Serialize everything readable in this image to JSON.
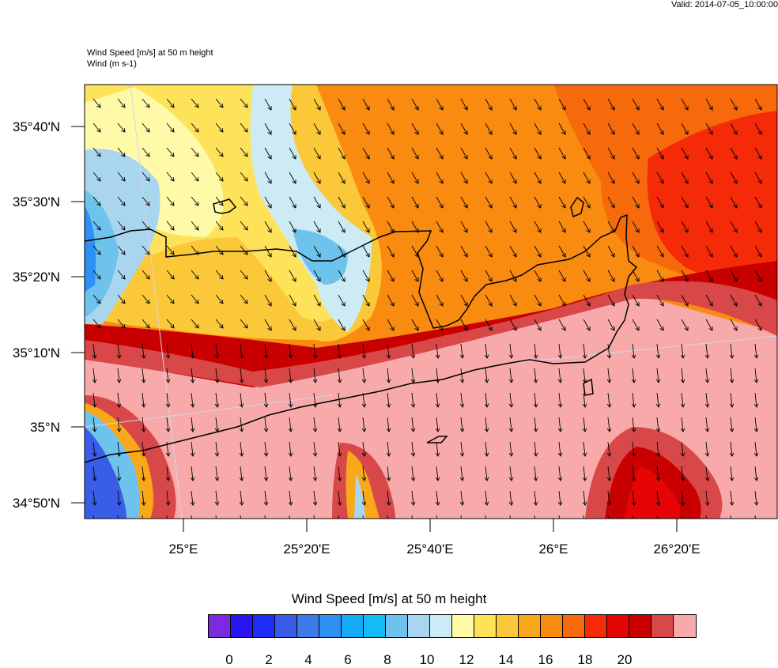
{
  "valid_text": "Valid: 2014-07-05_10:00:00",
  "title_line1": "Wind Speed [m/s] at 50 m height",
  "title_line2": "Wind   (m s-1)",
  "colorbar": {
    "title": "Wind Speed [m/s] at 50 m height",
    "colors": [
      "#7b2ae0",
      "#2a14f0",
      "#1e2ef5",
      "#3a5de8",
      "#3d7bea",
      "#2e8ff5",
      "#16a9f5",
      "#14bbf5",
      "#6ec3ec",
      "#a9d6ee",
      "#ccebf4",
      "#fffaa8",
      "#fde25a",
      "#fbc83a",
      "#f9a81b",
      "#f88b10",
      "#f76a0c",
      "#f52a08",
      "#e60505",
      "#c80000",
      "#d94848",
      "#f8aaaa"
    ],
    "labels": [
      "0",
      "2",
      "4",
      "6",
      "8",
      "10",
      "12",
      "14",
      "16",
      "18",
      "20"
    ]
  },
  "axes": {
    "lat_labels": [
      "35°40'N",
      "35°30'N",
      "35°20'N",
      "35°10'N",
      "35°N",
      "34°50'N"
    ],
    "lon_labels": [
      "25°E",
      "25°20'E",
      "25°40'E",
      "26°E",
      "26°20'E"
    ]
  }
}
